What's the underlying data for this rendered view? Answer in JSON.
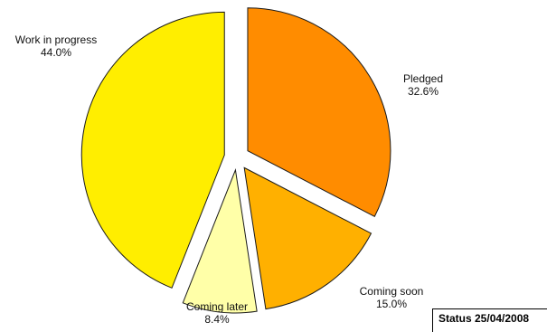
{
  "chart_data": {
    "type": "pie",
    "title": "",
    "slices": [
      {
        "label": "Pledged",
        "value": 32.6,
        "value_label": "32.6%",
        "color": "#ff8c00"
      },
      {
        "label": "Coming soon",
        "value": 15.0,
        "value_label": "15.0%",
        "color": "#ffb000"
      },
      {
        "label": "Coming later",
        "value": 8.4,
        "value_label": "8.4%",
        "color": "#ffffa8"
      },
      {
        "label": "Work in progress",
        "value": 44.0,
        "value_label": "44.0%",
        "color": "#ffee00"
      }
    ],
    "start_angle_deg": 0,
    "direction": "clockwise",
    "exploded": true,
    "legend": "none"
  },
  "status": {
    "text": "Status 25/04/2008"
  }
}
